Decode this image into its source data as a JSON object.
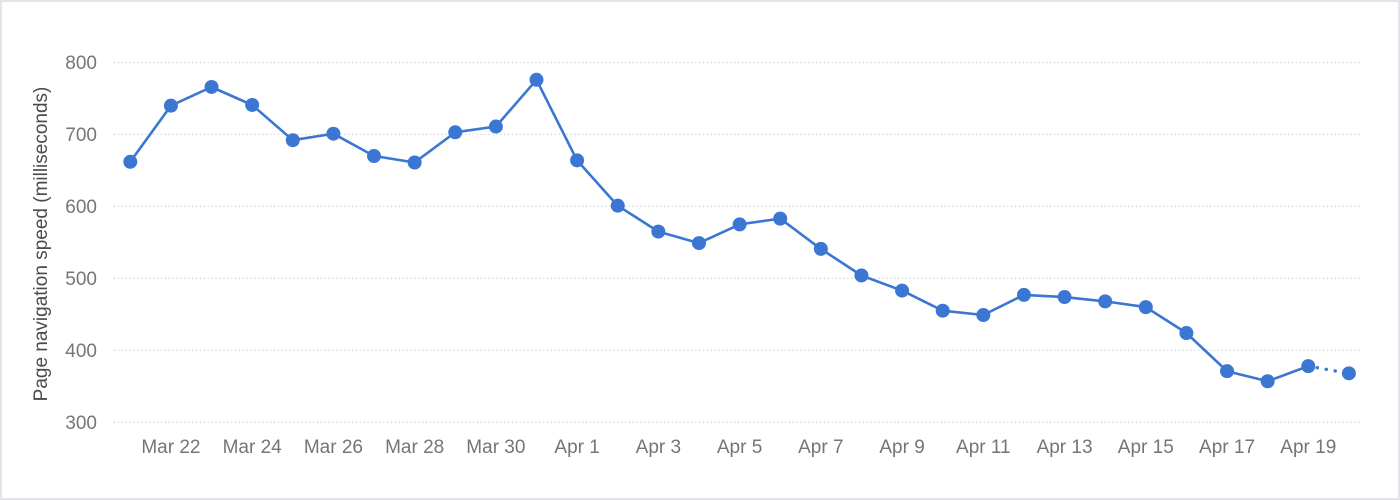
{
  "window": {
    "background_color": "#ffffff",
    "border_color": "#e3e3e8"
  },
  "chart_data": {
    "type": "line",
    "title": "",
    "xlabel": "",
    "ylabel": "Page navigation speed (milliseconds)",
    "ylim": [
      300,
      830
    ],
    "y_ticks": [
      800,
      700,
      600,
      500,
      400,
      300
    ],
    "x_tick_labels": [
      "Mar 22",
      "Mar 24",
      "Mar 26",
      "Mar 28",
      "Mar 30",
      "Apr 1",
      "Apr 3",
      "Apr 5",
      "Apr 7",
      "Apr 9",
      "Apr 11",
      "Apr 13",
      "Apr 15",
      "Apr 17",
      "Apr 19"
    ],
    "grid": "horizontal-dotted",
    "legend_position": "none",
    "marker": "circle",
    "final_segment_style": "dotted",
    "colors": {
      "line": "#3b76d3",
      "point": "#3b76d3",
      "grid": "#ccd3db",
      "tick_label": "#737578",
      "axis_title": "#4a4b50"
    },
    "series": [
      {
        "x": [
          "Mar 21",
          "Mar 22",
          "Mar 23",
          "Mar 24",
          "Mar 25",
          "Mar 26",
          "Mar 27",
          "Mar 28",
          "Mar 29",
          "Mar 30",
          "Mar 31",
          "Apr 1",
          "Apr 2",
          "Apr 3",
          "Apr 4",
          "Apr 5",
          "Apr 6",
          "Apr 7",
          "Apr 8",
          "Apr 9",
          "Apr 10",
          "Apr 11",
          "Apr 12",
          "Apr 13",
          "Apr 14",
          "Apr 15",
          "Apr 16",
          "Apr 17",
          "Apr 18",
          "Apr 19",
          "Apr 20"
        ],
        "values": [
          662,
          740,
          766,
          741,
          692,
          701,
          670,
          661,
          703,
          711,
          776,
          664,
          601,
          565,
          549,
          575,
          583,
          541,
          504,
          483,
          455,
          449,
          477,
          474,
          468,
          460,
          424,
          371,
          357,
          378,
          368
        ]
      }
    ]
  }
}
